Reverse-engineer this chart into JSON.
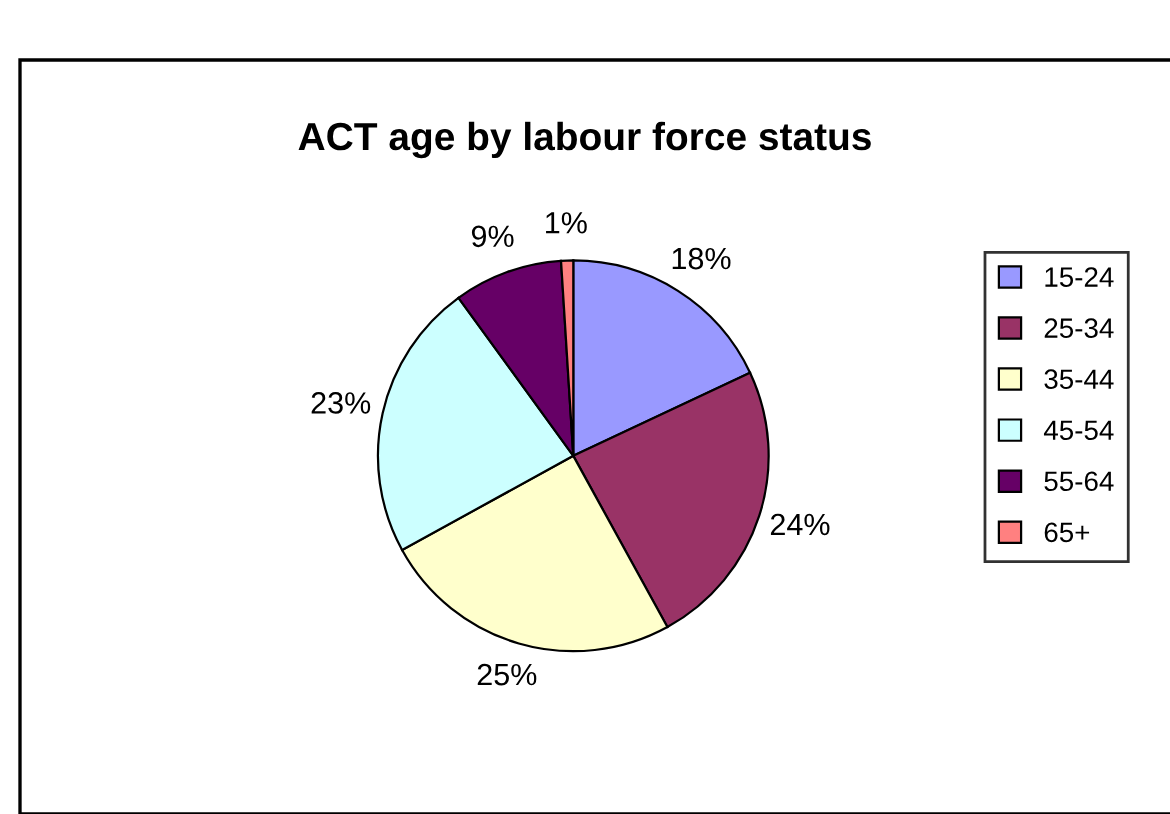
{
  "chart_data": {
    "type": "pie",
    "title": "ACT age by labour force status",
    "categories": [
      "15-24",
      "25-34",
      "35-44",
      "45-54",
      "55-64",
      "65+"
    ],
    "values": [
      18,
      24,
      25,
      23,
      9,
      1
    ],
    "colors": [
      "#9999ff",
      "#993366",
      "#ffffcc",
      "#ccffff",
      "#660066",
      "#ff8080"
    ],
    "value_labels": [
      "18%",
      "24%",
      "25%",
      "23%",
      "9%",
      "1%"
    ],
    "legend": "right"
  }
}
